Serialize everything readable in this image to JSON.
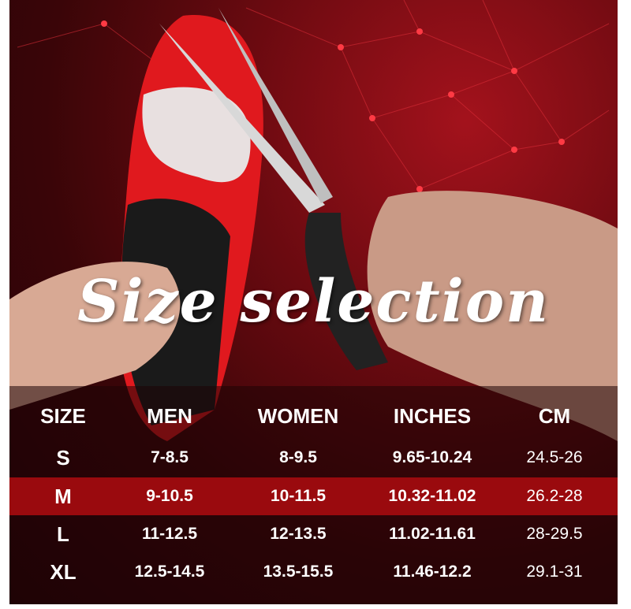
{
  "title": "Size selection",
  "table": {
    "headers": [
      "SIZE",
      "MEN",
      "WOMEN",
      "INCHES",
      "CM"
    ],
    "rows": [
      [
        "S",
        "7-8.5",
        "8-9.5",
        "9.65-10.24",
        "24.5-26"
      ],
      [
        "M",
        "9-10.5",
        "10-11.5",
        "10.32-11.02",
        "26.2-28"
      ],
      [
        "L",
        "11-12.5",
        "12-13.5",
        "11.02-11.61",
        "28-29.5"
      ],
      [
        "XL",
        "12.5-14.5",
        "13.5-15.5",
        "11.46-12.2",
        "29.1-31"
      ]
    ],
    "highlighted_row": "M"
  },
  "colors": {
    "highlight": "#9a0a0e",
    "insole": "#e0191e",
    "background": "#3a0508"
  }
}
